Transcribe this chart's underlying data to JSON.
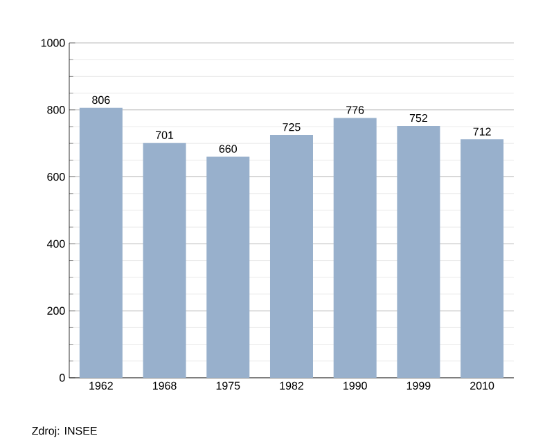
{
  "chart_data": {
    "type": "bar",
    "categories": [
      "1962",
      "1968",
      "1975",
      "1982",
      "1990",
      "1999",
      "2010"
    ],
    "values": [
      806,
      701,
      660,
      725,
      776,
      752,
      712
    ],
    "color": "#98b0cc",
    "ylim": [
      0,
      1000
    ],
    "yticks": [
      0,
      200,
      400,
      600,
      800,
      1000
    ],
    "grid": "y",
    "data_labels": true,
    "annotations": [
      "Zdroj: INSEE"
    ]
  }
}
